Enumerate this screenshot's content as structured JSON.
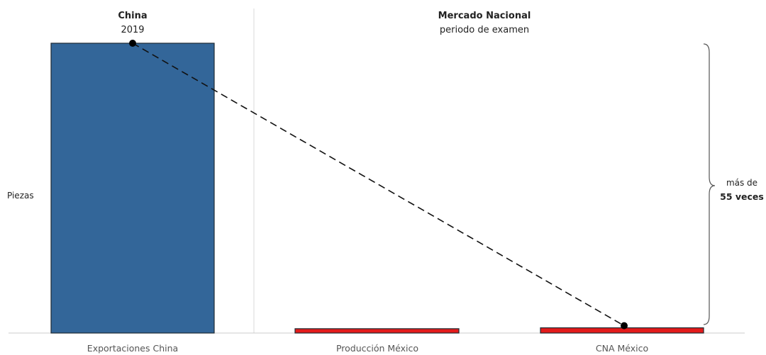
{
  "chart_data": {
    "type": "bar",
    "categories": [
      "Exportaciones China",
      "Producción México",
      "CNA México"
    ],
    "values": [
      100,
      1.5,
      1.8
    ],
    "bar_colors": [
      "#336699",
      "#e31b1b",
      "#e31b1b"
    ],
    "ylabel": "Piezas",
    "ylim": [
      0,
      100
    ],
    "grid": false,
    "sections": [
      {
        "title": "China",
        "subtitle": "2019"
      },
      {
        "title": "Mercado Nacional",
        "subtitle": "periodo de examen"
      }
    ],
    "annotation": {
      "line1": "más de",
      "line2": "55 veces"
    }
  }
}
